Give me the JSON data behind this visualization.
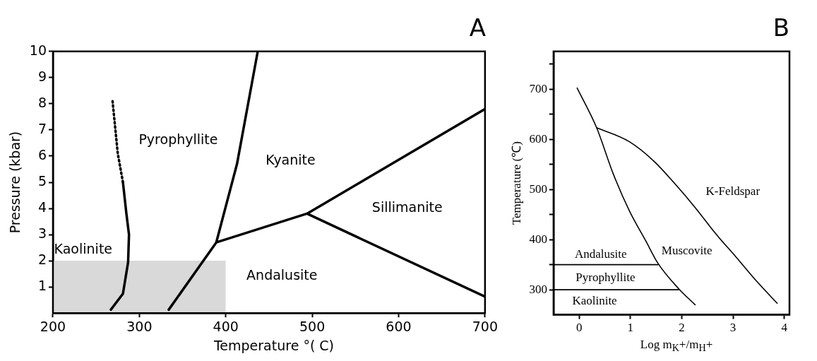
{
  "chart_data": [
    {
      "type": "line",
      "title": "A",
      "xlabel": "Temperature °( C)",
      "ylabel": "Pressure (kbar)",
      "xlim": [
        200,
        700
      ],
      "ylim": [
        0,
        10
      ],
      "xticks": [
        200,
        300,
        400,
        500,
        600,
        700
      ],
      "yticks": [
        1,
        2,
        3,
        4,
        5,
        6,
        7,
        8,
        9,
        10
      ],
      "grid": false,
      "legend": false,
      "marker": "none",
      "series": [
        {
          "type": "area",
          "color": "#d9d9d9",
          "x": [
            200,
            400
          ],
          "values": [
            2,
            2
          ]
        },
        {
          "color": "#000000",
          "x": [
            267,
            281,
            287,
            288,
            285,
            281
          ],
          "values": [
            0.13,
            0.74,
            1.95,
            3,
            3.8,
            5
          ]
        },
        {
          "color": "#000000",
          "line_style": "dotted",
          "x": [
            281,
            275,
            269
          ],
          "values": [
            5,
            6.1,
            8.1
          ]
        },
        {
          "color": "#000000",
          "x": [
            334,
            389,
            413,
            437,
            null,
            389,
            494,
            700,
            null,
            494,
            700
          ],
          "values": [
            0.13,
            2.7,
            5.7,
            10,
            null,
            2.7,
            3.8,
            7.8,
            null,
            3.8,
            0.63
          ]
        }
      ],
      "annotations": [
        "Kaolinite",
        "Pyrophyllite",
        "Kyanite",
        "Sillimanite",
        "Andalusite"
      ]
    },
    {
      "type": "line",
      "title": "B",
      "xlabel": "Log m$_{K}$+/m$_{H}$+",
      "ylabel": "Temperature (℃)",
      "xlim": [
        -0.5,
        4.1
      ],
      "ylim": [
        250,
        775
      ],
      "xticks": [
        0,
        1,
        2,
        3,
        4
      ],
      "yticks": [
        300,
        {
          "value": 350,
          "label": null
        },
        400,
        {
          "value": 450,
          "label": null
        },
        500,
        {
          "value": 550,
          "label": null
        },
        600,
        {
          "value": 650,
          "label": null
        },
        700,
        {
          "value": 750,
          "label": null
        }
      ],
      "grid": false,
      "legend": false,
      "marker": "none",
      "series": [
        {
          "color": "#000000",
          "x": [
            -0.04,
            0.34,
            0.66,
            0.98,
            1.3,
            1.54,
            1.94,
            2.26
          ],
          "values": [
            702,
            623,
            532,
            457,
            397,
            352,
            302,
            270
          ]
        },
        {
          "color": "#000000",
          "x": [
            0.34,
            0.98,
            1.46,
            1.86,
            2.26,
            2.66,
            3.06,
            3.46,
            3.86
          ],
          "values": [
            623,
            595,
            556,
            512,
            464,
            412,
            365,
            317,
            273
          ]
        },
        {
          "color": "#000000",
          "x": [
            -0.5,
            1.54
          ],
          "values": [
            350,
            350
          ]
        },
        {
          "color": "#000000",
          "x": [
            -0.5,
            1.94
          ],
          "values": [
            300,
            300
          ]
        }
      ],
      "annotations": [
        "Andalusite",
        "Pyrophyllite",
        "Kaolinite",
        "Muscovite",
        "K-Feldspar"
      ]
    }
  ]
}
